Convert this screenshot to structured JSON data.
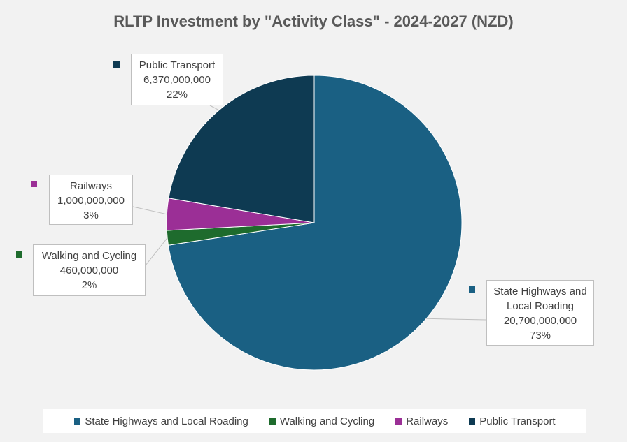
{
  "chart_data": {
    "type": "pie",
    "title": "RLTP Investment by \"Activity Class\" - 2024-2027 (NZD)",
    "categories": [
      "State Highways and Local Roading",
      "Walking and Cycling",
      "Railways",
      "Public Transport"
    ],
    "values": [
      20700000000,
      460000000,
      1000000000,
      6370000000
    ],
    "value_labels": [
      "20,700,000,000",
      "460,000,000",
      "1,000,000,000",
      "6,370,000,000"
    ],
    "percent_labels": [
      "73%",
      "2%",
      "3%",
      "22%"
    ],
    "colors": [
      "#1a6083",
      "#1e6b2d",
      "#9b2f96",
      "#0e3a52"
    ],
    "legend_position": "bottom",
    "callouts": {
      "state_highways": {
        "line1": "State Highways and",
        "line2": "Local Roading",
        "value": "20,700,000,000",
        "pct": "73%"
      },
      "walking": {
        "line1": "Walking and Cycling",
        "value": "460,000,000",
        "pct": "2%"
      },
      "railways": {
        "line1": "Railways",
        "value": "1,000,000,000",
        "pct": "3%"
      },
      "public_transport": {
        "line1": "Public Transport",
        "value": "6,370,000,000",
        "pct": "22%"
      }
    },
    "legend": [
      "State Highways and Local Roading",
      "Walking and Cycling",
      "Railways",
      "Public Transport"
    ]
  }
}
